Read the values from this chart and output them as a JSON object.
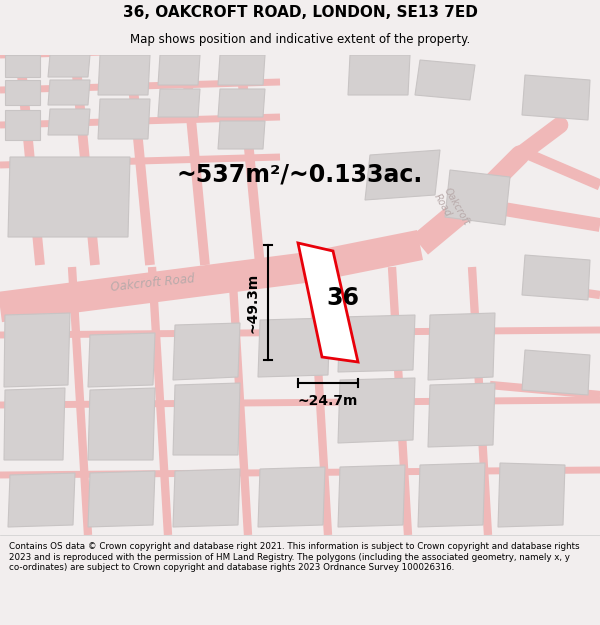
{
  "title": "36, OAKCROFT ROAD, LONDON, SE13 7ED",
  "subtitle": "Map shows position and indicative extent of the property.",
  "area_text": "~537m²/~0.133ac.",
  "dim_height": "~49.3m",
  "dim_width": "~24.7m",
  "house_number": "36",
  "footer": "Contains OS data © Crown copyright and database right 2021. This information is subject to Crown copyright and database rights 2023 and is reproduced with the permission of HM Land Registry. The polygons (including the associated geometry, namely x, y co-ordinates) are subject to Crown copyright and database rights 2023 Ordnance Survey 100026316.",
  "bg_color": "#f2eeee",
  "map_bg": "#ffffff",
  "road_color": "#f0b8b8",
  "building_color": "#d4d0d0",
  "building_edge": "#c8c4c4",
  "highlight_color": "#e8000a",
  "road_label_color": "#b8aaaa",
  "title_color": "#000000",
  "footer_color": "#000000",
  "footer_bg": "#ffffff"
}
